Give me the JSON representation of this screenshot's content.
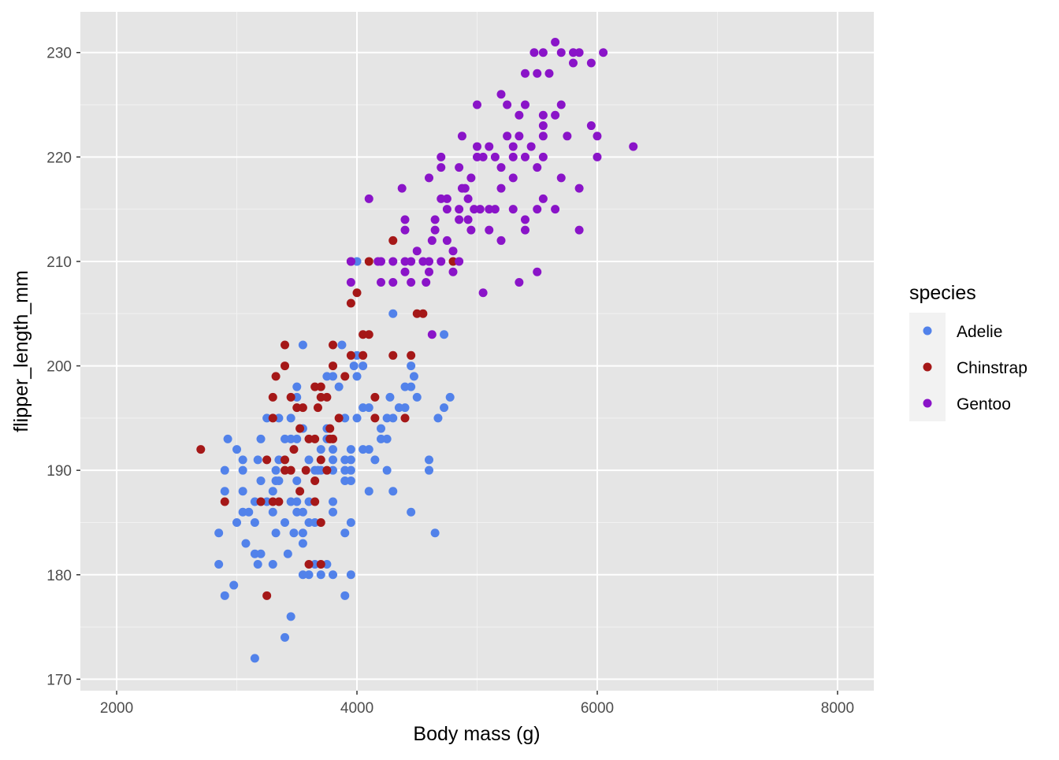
{
  "chart_data": {
    "type": "scatter",
    "title": "",
    "xlabel": "Body mass (g)",
    "ylabel": "flipper_length_mm",
    "xlim": [
      1698,
      8302
    ],
    "ylim": [
      168.9,
      233.9
    ],
    "x_ticks": [
      2000,
      4000,
      6000,
      8000
    ],
    "y_ticks": [
      170,
      180,
      190,
      200,
      210,
      220,
      230
    ],
    "grid": true,
    "legend": {
      "title": "species",
      "position": "right"
    },
    "series": [
      {
        "name": "Adelie",
        "color": "#5282ea",
        "points": [
          [
            3150,
            172
          ],
          [
            3400,
            174
          ],
          [
            3450,
            176
          ],
          [
            2900,
            178
          ],
          [
            2975,
            179
          ],
          [
            3900,
            178
          ],
          [
            2850,
            181
          ],
          [
            3175,
            181
          ],
          [
            3300,
            181
          ],
          [
            3550,
            180
          ],
          [
            3600,
            180
          ],
          [
            3700,
            180
          ],
          [
            3800,
            180
          ],
          [
            3950,
            180
          ],
          [
            3650,
            181
          ],
          [
            3750,
            181
          ],
          [
            3150,
            182
          ],
          [
            3200,
            182
          ],
          [
            3425,
            182
          ],
          [
            3075,
            183
          ],
          [
            3550,
            183
          ],
          [
            2850,
            184
          ],
          [
            3325,
            184
          ],
          [
            3475,
            184
          ],
          [
            3550,
            184
          ],
          [
            3900,
            184
          ],
          [
            4650,
            184
          ],
          [
            3000,
            185
          ],
          [
            3150,
            185
          ],
          [
            3400,
            185
          ],
          [
            3600,
            185
          ],
          [
            3650,
            185
          ],
          [
            3950,
            185
          ],
          [
            3050,
            186
          ],
          [
            3100,
            186
          ],
          [
            3300,
            186
          ],
          [
            3500,
            186
          ],
          [
            3550,
            186
          ],
          [
            3800,
            186
          ],
          [
            4450,
            186
          ],
          [
            3150,
            187
          ],
          [
            3250,
            187
          ],
          [
            3450,
            187
          ],
          [
            3500,
            187
          ],
          [
            3600,
            187
          ],
          [
            3800,
            187
          ],
          [
            2900,
            188
          ],
          [
            3050,
            188
          ],
          [
            3300,
            188
          ],
          [
            4100,
            188
          ],
          [
            4300,
            188
          ],
          [
            3200,
            189
          ],
          [
            3325,
            189
          ],
          [
            3350,
            189
          ],
          [
            3500,
            189
          ],
          [
            3900,
            189
          ],
          [
            3950,
            189
          ],
          [
            2900,
            190
          ],
          [
            3050,
            190
          ],
          [
            3325,
            190
          ],
          [
            3650,
            190
          ],
          [
            3675,
            190
          ],
          [
            3700,
            190
          ],
          [
            3800,
            190
          ],
          [
            3900,
            190
          ],
          [
            3950,
            190
          ],
          [
            4250,
            190
          ],
          [
            4600,
            190
          ],
          [
            3050,
            191
          ],
          [
            3175,
            191
          ],
          [
            3350,
            191
          ],
          [
            3600,
            191
          ],
          [
            3800,
            191
          ],
          [
            3900,
            191
          ],
          [
            4150,
            191
          ],
          [
            4600,
            191
          ],
          [
            3950,
            191
          ],
          [
            3000,
            192
          ],
          [
            3700,
            192
          ],
          [
            3950,
            192
          ],
          [
            4050,
            192
          ],
          [
            4100,
            192
          ],
          [
            3800,
            192
          ],
          [
            2925,
            193
          ],
          [
            3200,
            193
          ],
          [
            3400,
            193
          ],
          [
            3450,
            193
          ],
          [
            3500,
            193
          ],
          [
            3750,
            193
          ],
          [
            4200,
            193
          ],
          [
            4250,
            193
          ],
          [
            3550,
            194
          ],
          [
            3750,
            194
          ],
          [
            4200,
            194
          ],
          [
            3250,
            195
          ],
          [
            3350,
            195
          ],
          [
            3450,
            195
          ],
          [
            3900,
            195
          ],
          [
            4000,
            195
          ],
          [
            4250,
            195
          ],
          [
            4300,
            195
          ],
          [
            4675,
            195
          ],
          [
            4050,
            196
          ],
          [
            4100,
            196
          ],
          [
            4350,
            196
          ],
          [
            4400,
            196
          ],
          [
            4725,
            196
          ],
          [
            3500,
            197
          ],
          [
            4275,
            197
          ],
          [
            4500,
            197
          ],
          [
            4775,
            197
          ],
          [
            3500,
            198
          ],
          [
            3850,
            198
          ],
          [
            4400,
            198
          ],
          [
            4450,
            198
          ],
          [
            3750,
            199
          ],
          [
            3800,
            199
          ],
          [
            4000,
            199
          ],
          [
            4475,
            199
          ],
          [
            3975,
            200
          ],
          [
            4050,
            200
          ],
          [
            4450,
            200
          ],
          [
            4000,
            201
          ],
          [
            3875,
            202
          ],
          [
            3550,
            202
          ],
          [
            4725,
            203
          ],
          [
            4300,
            205
          ],
          [
            4000,
            210
          ]
        ]
      },
      {
        "name": "Chinstrap",
        "color": "#a51818",
        "points": [
          [
            2700,
            192
          ],
          [
            2900,
            187
          ],
          [
            3250,
            178
          ],
          [
            3950,
            210
          ],
          [
            4100,
            210
          ],
          [
            4300,
            212
          ],
          [
            4000,
            207
          ],
          [
            3950,
            206
          ],
          [
            4500,
            205
          ],
          [
            4550,
            205
          ],
          [
            4800,
            210
          ],
          [
            3400,
            202
          ],
          [
            3800,
            202
          ],
          [
            4050,
            203
          ],
          [
            4100,
            203
          ],
          [
            3400,
            200
          ],
          [
            3800,
            200
          ],
          [
            3950,
            201
          ],
          [
            4050,
            201
          ],
          [
            4300,
            201
          ],
          [
            4450,
            201
          ],
          [
            3325,
            199
          ],
          [
            3900,
            199
          ],
          [
            3300,
            197
          ],
          [
            3450,
            197
          ],
          [
            3700,
            197
          ],
          [
            3750,
            197
          ],
          [
            4150,
            197
          ],
          [
            3500,
            196
          ],
          [
            3550,
            196
          ],
          [
            3675,
            196
          ],
          [
            3850,
            195
          ],
          [
            3300,
            195
          ],
          [
            4150,
            195
          ],
          [
            4400,
            195
          ],
          [
            3650,
            198
          ],
          [
            3700,
            198
          ],
          [
            3525,
            194
          ],
          [
            3775,
            194
          ],
          [
            3600,
            193
          ],
          [
            3650,
            193
          ],
          [
            3775,
            193
          ],
          [
            3800,
            193
          ],
          [
            3475,
            192
          ],
          [
            3700,
            191
          ],
          [
            3250,
            191
          ],
          [
            3400,
            191
          ],
          [
            3400,
            190
          ],
          [
            3450,
            190
          ],
          [
            3575,
            190
          ],
          [
            3750,
            190
          ],
          [
            3650,
            189
          ],
          [
            3525,
            188
          ],
          [
            3200,
            187
          ],
          [
            3300,
            187
          ],
          [
            3350,
            187
          ],
          [
            3650,
            187
          ],
          [
            3700,
            185
          ],
          [
            3600,
            181
          ],
          [
            3700,
            181
          ]
        ]
      },
      {
        "name": "Gentoo",
        "color": "#8a14c8",
        "points": [
          [
            5650,
            231
          ],
          [
            5475,
            230
          ],
          [
            5550,
            230
          ],
          [
            5700,
            230
          ],
          [
            5800,
            230
          ],
          [
            5850,
            230
          ],
          [
            6050,
            230
          ],
          [
            5400,
            228
          ],
          [
            5500,
            228
          ],
          [
            5600,
            228
          ],
          [
            5800,
            229
          ],
          [
            5950,
            229
          ],
          [
            5200,
            226
          ],
          [
            5000,
            225
          ],
          [
            5250,
            225
          ],
          [
            5400,
            225
          ],
          [
            5700,
            225
          ],
          [
            5350,
            224
          ],
          [
            5550,
            224
          ],
          [
            5650,
            224
          ],
          [
            5550,
            223
          ],
          [
            5950,
            223
          ],
          [
            4875,
            222
          ],
          [
            5250,
            222
          ],
          [
            5350,
            222
          ],
          [
            5550,
            222
          ],
          [
            5750,
            222
          ],
          [
            6000,
            222
          ],
          [
            5000,
            221
          ],
          [
            5100,
            221
          ],
          [
            5300,
            221
          ],
          [
            5450,
            221
          ],
          [
            6300,
            221
          ],
          [
            4700,
            220
          ],
          [
            5000,
            220
          ],
          [
            5050,
            220
          ],
          [
            5150,
            220
          ],
          [
            5300,
            220
          ],
          [
            5400,
            220
          ],
          [
            5550,
            220
          ],
          [
            6000,
            220
          ],
          [
            4700,
            219
          ],
          [
            4850,
            219
          ],
          [
            5200,
            219
          ],
          [
            5500,
            219
          ],
          [
            4950,
            218
          ],
          [
            4600,
            218
          ],
          [
            5300,
            218
          ],
          [
            5700,
            218
          ],
          [
            4100,
            216
          ],
          [
            4375,
            217
          ],
          [
            4875,
            217
          ],
          [
            4900,
            217
          ],
          [
            5200,
            217
          ],
          [
            5850,
            217
          ],
          [
            4700,
            216
          ],
          [
            4750,
            216
          ],
          [
            4925,
            216
          ],
          [
            5550,
            216
          ],
          [
            4750,
            215
          ],
          [
            4850,
            215
          ],
          [
            4975,
            215
          ],
          [
            5025,
            215
          ],
          [
            5100,
            215
          ],
          [
            5150,
            215
          ],
          [
            5300,
            215
          ],
          [
            5500,
            215
          ],
          [
            5650,
            215
          ],
          [
            4650,
            214
          ],
          [
            4400,
            214
          ],
          [
            4850,
            214
          ],
          [
            4925,
            214
          ],
          [
            5400,
            214
          ],
          [
            4400,
            213
          ],
          [
            4650,
            213
          ],
          [
            4950,
            213
          ],
          [
            5100,
            213
          ],
          [
            5400,
            213
          ],
          [
            5850,
            213
          ],
          [
            4625,
            212
          ],
          [
            4750,
            212
          ],
          [
            5200,
            212
          ],
          [
            4500,
            211
          ],
          [
            4800,
            211
          ],
          [
            3950,
            210
          ],
          [
            4175,
            210
          ],
          [
            4200,
            210
          ],
          [
            4300,
            210
          ],
          [
            4400,
            210
          ],
          [
            4450,
            210
          ],
          [
            4550,
            210
          ],
          [
            4600,
            210
          ],
          [
            4700,
            210
          ],
          [
            4850,
            210
          ],
          [
            4400,
            209
          ],
          [
            4600,
            209
          ],
          [
            4800,
            209
          ],
          [
            5500,
            209
          ],
          [
            3950,
            208
          ],
          [
            4200,
            208
          ],
          [
            4300,
            208
          ],
          [
            4450,
            208
          ],
          [
            4575,
            208
          ],
          [
            5350,
            208
          ],
          [
            5050,
            207
          ],
          [
            4625,
            203
          ]
        ]
      }
    ]
  }
}
